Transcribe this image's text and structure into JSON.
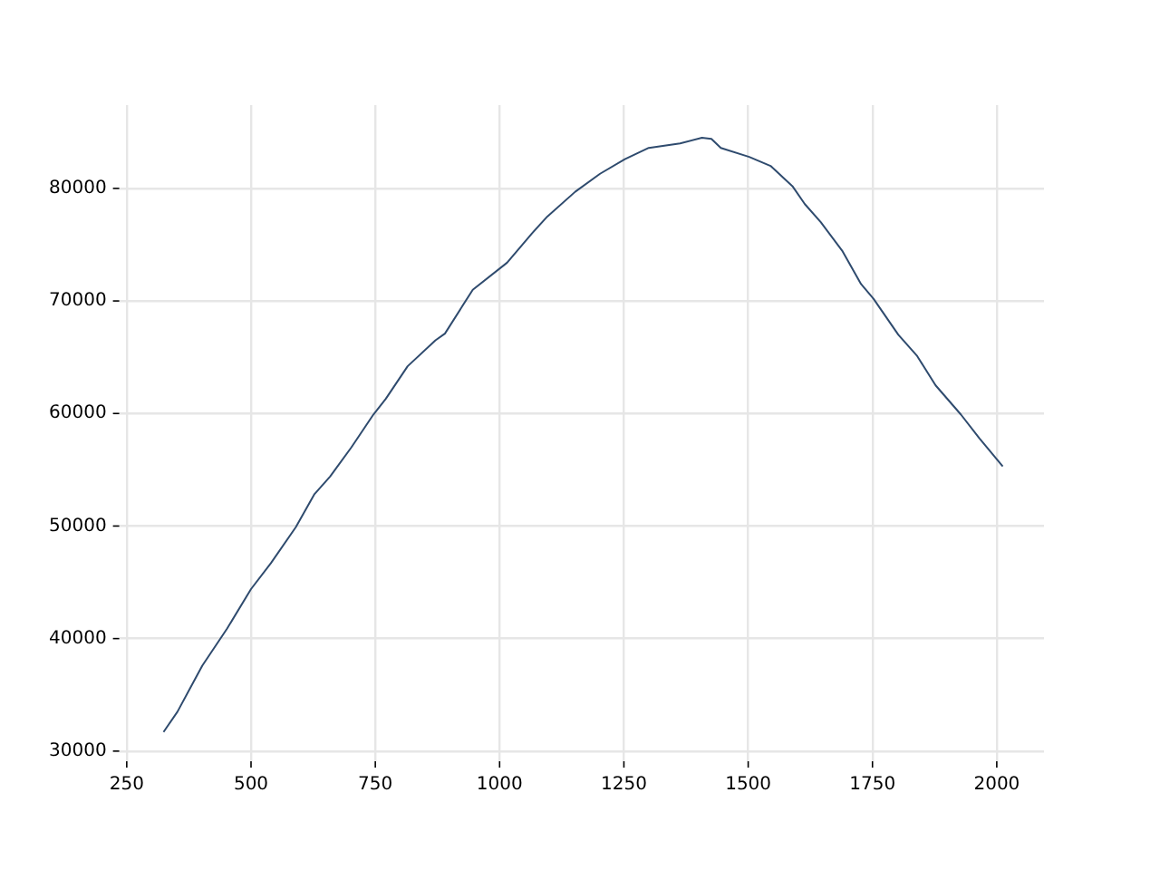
{
  "chart_data": {
    "type": "line",
    "x": [
      324,
      352,
      402,
      452,
      500,
      540,
      590,
      627,
      659,
      702,
      746,
      771,
      815,
      871,
      890,
      946,
      1015,
      1065,
      1096,
      1152,
      1202,
      1252,
      1300,
      1363,
      1407,
      1426,
      1445,
      1502,
      1545,
      1589,
      1614,
      1646,
      1690,
      1727,
      1752,
      1802,
      1840,
      1877,
      1928,
      1965,
      2012
    ],
    "series": [
      {
        "color": "#2f4b6e",
        "values": [
          31700,
          33500,
          37600,
          40900,
          44400,
          46700,
          49900,
          52800,
          54400,
          57000,
          59900,
          61300,
          64200,
          66500,
          67100,
          71000,
          73400,
          76000,
          77500,
          79700,
          81300,
          82600,
          83600,
          84000,
          84500,
          84400,
          83600,
          82800,
          82000,
          80200,
          78600,
          77000,
          74400,
          71500,
          70200,
          67000,
          65100,
          62500,
          59900,
          57800,
          55300
        ]
      }
    ],
    "xlim": [
      235,
      2095
    ],
    "xticks": [
      250,
      500,
      750,
      1000,
      1250,
      1500,
      1750,
      2000
    ],
    "ylim": [
      29100,
      87400
    ],
    "yticks": [
      30000,
      40000,
      50000,
      60000,
      70000,
      80000
    ],
    "grid": true,
    "legend": false,
    "marker": "none",
    "line_style": "solid"
  }
}
